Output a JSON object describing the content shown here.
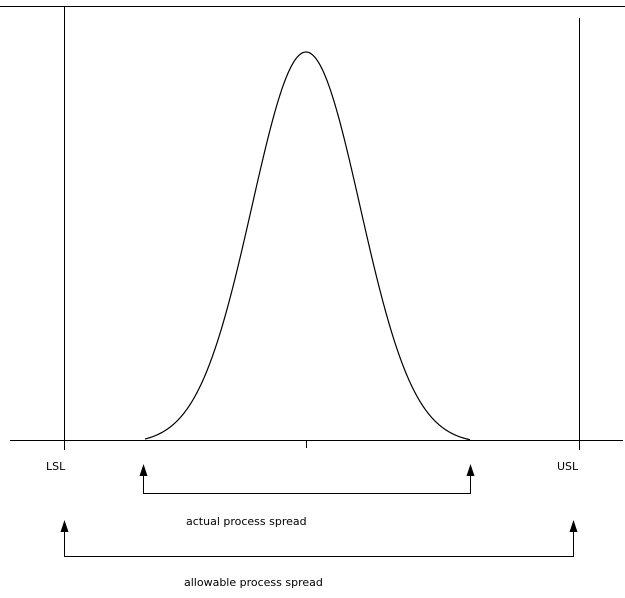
{
  "labels": {
    "lsl": "LSL",
    "usl": "USL",
    "actual_spread": "actual process spread",
    "allowable_spread": "allowable process spread"
  },
  "colors": {
    "line": "#000000",
    "background": "#ffffff"
  }
}
